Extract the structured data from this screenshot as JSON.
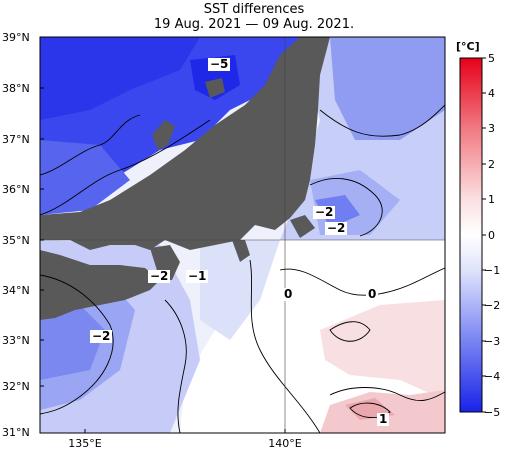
{
  "title": {
    "line1": "SST differences",
    "line2": "19 Aug. 2021 — 09 Aug. 2021."
  },
  "lat_labels": [
    "39°N",
    "38°N",
    "37°N",
    "36°N",
    "35°N",
    "34°N",
    "33°N",
    "32°N",
    "31°N"
  ],
  "lon_labels": [
    "135°E",
    "140°E"
  ],
  "colorbar": {
    "unit": "[°C]",
    "ticks": [
      "5",
      "4",
      "3",
      "2",
      "1",
      "0",
      "−1",
      "−2",
      "−3",
      "−4",
      "−5"
    ],
    "colors": {
      "max": "#e8001a",
      "mid": "#ffffff",
      "min": "#1a22e8"
    }
  },
  "contour_labels": {
    "minus5": "−5",
    "minus2_east_a": "−2",
    "minus2_east_b": "−2",
    "minus2_west": "−2",
    "minus1": "−1",
    "minus2_southwest": "−2",
    "zero_a": "0",
    "zero_b": "0",
    "one": "1"
  },
  "colors": {
    "land": "#595959",
    "deep_blue": "#2f3fee",
    "mid_blue": "#6f7ff0",
    "light_blue": "#b8c2f6",
    "pale_blue": "#e3e8fb",
    "pale_red": "#f6d6d8"
  }
}
